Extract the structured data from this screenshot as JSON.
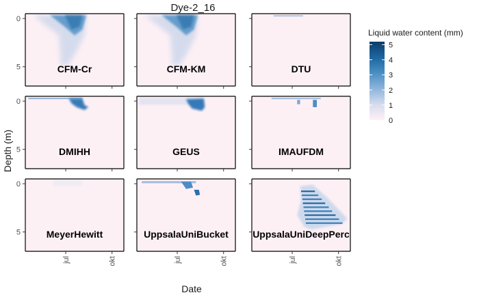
{
  "chart_data": {
    "type": "heatmap",
    "title": "Dye-2_16",
    "xlabel": "Date",
    "ylabel": "Depth (m)",
    "x_ticks": [
      "jul",
      "okt"
    ],
    "y_ticks": [
      "0",
      "5"
    ],
    "y_tick_values": [
      0,
      5
    ],
    "ylim": [
      7,
      -0.5
    ],
    "legend": {
      "title": "Liquid water content (mm)",
      "ticks": [
        "0",
        "1",
        "2",
        "3",
        "4",
        "5"
      ],
      "tick_values": [
        0,
        1,
        2,
        3,
        4,
        5
      ],
      "range": [
        0,
        5.2
      ],
      "position": "right",
      "colors": [
        "#fff0f6",
        "#d6dcee",
        "#8fb5dc",
        "#4a8fc4",
        "#1d66a0",
        "#0b3d6b"
      ]
    },
    "background_color": "#fdf0f5",
    "panels": [
      {
        "name": "CFM-Cr",
        "intensity": "broad shallow wetting from late May to August, mostly 0-2 m, diffuse to ~4 m"
      },
      {
        "name": "CFM-KM",
        "intensity": "broad shallow wetting from late May to August, mostly 0-2 m, diffuse to ~4 m"
      },
      {
        "name": "DTU",
        "intensity": "very little water, only traces near surface"
      },
      {
        "name": "DMIHH",
        "intensity": "sparse near-surface traces, strong pulse in late July to ~1.3 m"
      },
      {
        "name": "GEUS",
        "intensity": "near-surface wetting, strong pulse in late July to ~1.3 m"
      },
      {
        "name": "IMAUFDM",
        "intensity": "sparse near-surface traces, small pulse in late July"
      },
      {
        "name": "MeyerHewitt",
        "intensity": "faint traces near surface in July"
      },
      {
        "name": "UppsalaUniBucket",
        "intensity": "near-surface traces, pulses in July to ~1.3 m"
      },
      {
        "name": "UppsalaUniDeepPerc",
        "intensity": "deep banded percolation from July to September, ~0.5-5 m"
      }
    ]
  }
}
